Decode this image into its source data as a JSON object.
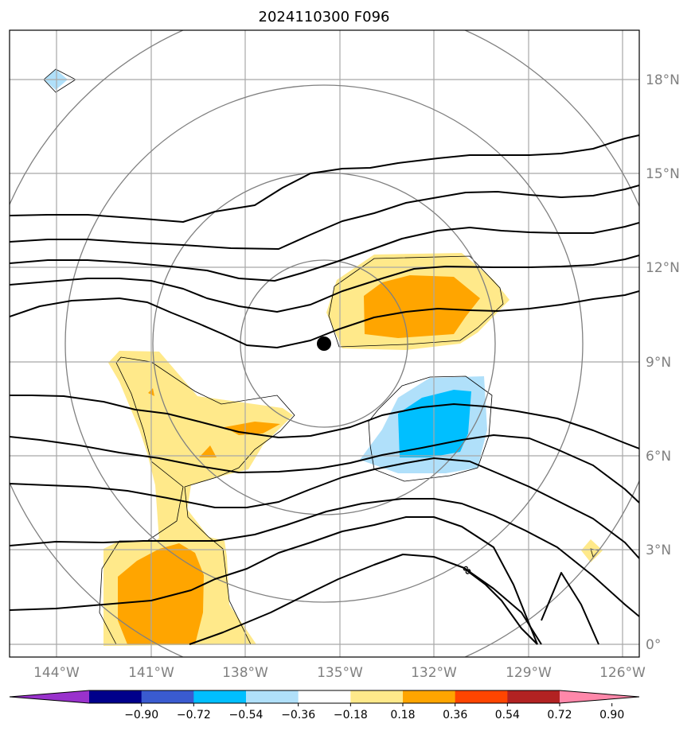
{
  "title": "2024110300 F096",
  "map": {
    "lat_labels": [
      "18°N",
      "15°N",
      "12°N",
      "9°N",
      "6°N",
      "3°N",
      "0°"
    ],
    "lon_labels": [
      "144°W",
      "141°W",
      "138°W",
      "135°W",
      "132°W",
      "129°W",
      "126°W"
    ],
    "contour_label": "8",
    "storm_marker": "black-dot"
  },
  "colorbar": {
    "tick_labels": [
      "−0.90",
      "−0.72",
      "−0.54",
      "−0.36",
      "−0.18",
      "0.18",
      "0.36",
      "0.54",
      "0.72",
      "0.90"
    ],
    "colors": [
      "#9932cc",
      "#00008b",
      "#3a5bd0",
      "#00bfff",
      "#b0e0fa",
      "#ffffff",
      "#ffe98a",
      "#ffa500",
      "#ff4500",
      "#b22222",
      "#ff88aa"
    ]
  }
}
